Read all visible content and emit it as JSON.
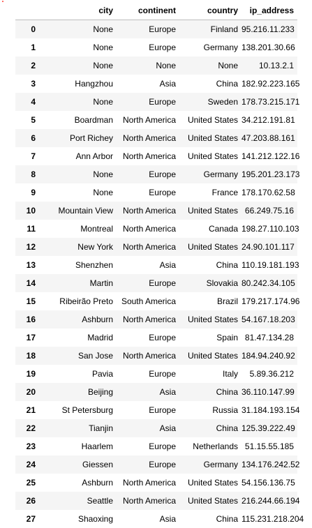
{
  "table": {
    "columns": [
      "",
      "city",
      "continent",
      "country",
      "ip_address"
    ],
    "rows": [
      {
        "index": "0",
        "city": "None",
        "continent": "Europe",
        "country": "Finland",
        "ip_address": "95.216.11.233"
      },
      {
        "index": "1",
        "city": "None",
        "continent": "Europe",
        "country": "Germany",
        "ip_address": "138.201.30.66"
      },
      {
        "index": "2",
        "city": "None",
        "continent": "None",
        "country": "None",
        "ip_address": "10.13.2.1"
      },
      {
        "index": "3",
        "city": "Hangzhou",
        "continent": "Asia",
        "country": "China",
        "ip_address": "182.92.223.165"
      },
      {
        "index": "4",
        "city": "None",
        "continent": "Europe",
        "country": "Sweden",
        "ip_address": "178.73.215.171"
      },
      {
        "index": "5",
        "city": "Boardman",
        "continent": "North America",
        "country": "United States",
        "ip_address": "34.212.191.81"
      },
      {
        "index": "6",
        "city": "Port Richey",
        "continent": "North America",
        "country": "United States",
        "ip_address": "47.203.88.161"
      },
      {
        "index": "7",
        "city": "Ann Arbor",
        "continent": "North America",
        "country": "United States",
        "ip_address": "141.212.122.16"
      },
      {
        "index": "8",
        "city": "None",
        "continent": "Europe",
        "country": "Germany",
        "ip_address": "195.201.23.173"
      },
      {
        "index": "9",
        "city": "None",
        "continent": "Europe",
        "country": "France",
        "ip_address": "178.170.62.58"
      },
      {
        "index": "10",
        "city": "Mountain View",
        "continent": "North America",
        "country": "United States",
        "ip_address": "66.249.75.16"
      },
      {
        "index": "11",
        "city": "Montreal",
        "continent": "North America",
        "country": "Canada",
        "ip_address": "198.27.110.103"
      },
      {
        "index": "12",
        "city": "New York",
        "continent": "North America",
        "country": "United States",
        "ip_address": "24.90.101.117"
      },
      {
        "index": "13",
        "city": "Shenzhen",
        "continent": "Asia",
        "country": "China",
        "ip_address": "110.19.181.193"
      },
      {
        "index": "14",
        "city": "Martin",
        "continent": "Europe",
        "country": "Slovakia",
        "ip_address": "80.242.34.105"
      },
      {
        "index": "15",
        "city": "Ribeirão Preto",
        "continent": "South America",
        "country": "Brazil",
        "ip_address": "179.217.174.96"
      },
      {
        "index": "16",
        "city": "Ashburn",
        "continent": "North America",
        "country": "United States",
        "ip_address": "54.167.18.203"
      },
      {
        "index": "17",
        "city": "Madrid",
        "continent": "Europe",
        "country": "Spain",
        "ip_address": "81.47.134.28"
      },
      {
        "index": "18",
        "city": "San Jose",
        "continent": "North America",
        "country": "United States",
        "ip_address": "184.94.240.92"
      },
      {
        "index": "19",
        "city": "Pavia",
        "continent": "Europe",
        "country": "Italy",
        "ip_address": "5.89.36.212"
      },
      {
        "index": "20",
        "city": "Beijing",
        "continent": "Asia",
        "country": "China",
        "ip_address": "36.110.147.99"
      },
      {
        "index": "21",
        "city": "St Petersburg",
        "continent": "Europe",
        "country": "Russia",
        "ip_address": "31.184.193.154"
      },
      {
        "index": "22",
        "city": "Tianjin",
        "continent": "Asia",
        "country": "China",
        "ip_address": "125.39.222.49"
      },
      {
        "index": "23",
        "city": "Haarlem",
        "continent": "Europe",
        "country": "Netherlands",
        "ip_address": "51.15.55.185"
      },
      {
        "index": "24",
        "city": "Giessen",
        "continent": "Europe",
        "country": "Germany",
        "ip_address": "134.176.242.52"
      },
      {
        "index": "25",
        "city": "Ashburn",
        "continent": "North America",
        "country": "United States",
        "ip_address": "54.156.136.75"
      },
      {
        "index": "26",
        "city": "Seattle",
        "continent": "North America",
        "country": "United States",
        "ip_address": "216.244.66.194"
      },
      {
        "index": "27",
        "city": "Shaoxing",
        "continent": "Asia",
        "country": "China",
        "ip_address": "115.231.218.204"
      }
    ]
  }
}
